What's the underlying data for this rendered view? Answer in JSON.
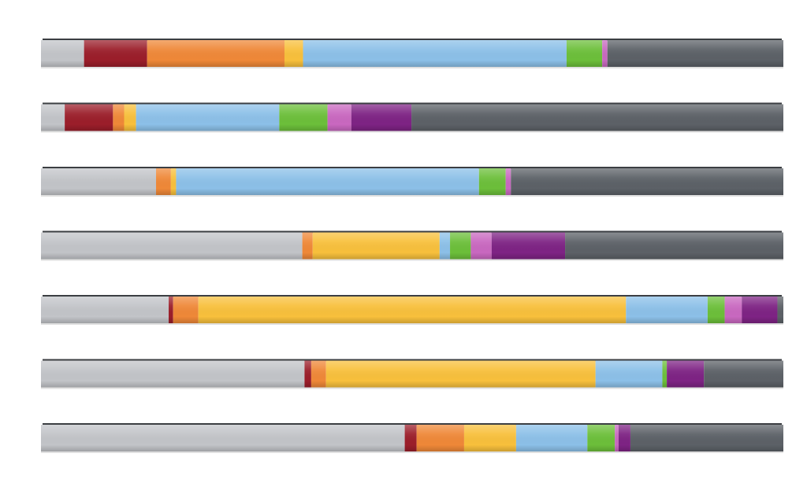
{
  "title": "",
  "chart_data": {
    "type": "bar",
    "orientation": "horizontal",
    "stacked": true,
    "title": "",
    "xlabel": "",
    "ylabel": "",
    "xlim": [
      0,
      1
    ],
    "grid": false,
    "legend": "none",
    "colors": {
      "light_gray": "#c2c4c8",
      "dark_red": "#9b1e2a",
      "orange": "#ef8838",
      "yellow": "#f8c03c",
      "light_blue": "#8cc0e8",
      "green": "#6cbf3a",
      "pink": "#c968c0",
      "purple": "#7e2384",
      "dark_gray": "#5c6167"
    },
    "rows": [
      {
        "segments": [
          {
            "color": "light_gray",
            "value": 0.058
          },
          {
            "color": "dark_red",
            "value": 0.085
          },
          {
            "color": "orange",
            "value": 0.185
          },
          {
            "color": "yellow",
            "value": 0.025
          },
          {
            "color": "light_blue",
            "value": 0.355
          },
          {
            "color": "green",
            "value": 0.048
          },
          {
            "color": "pink",
            "value": 0.007
          },
          {
            "color": "dark_gray",
            "value": 0.237
          }
        ]
      },
      {
        "segments": [
          {
            "color": "light_gray",
            "value": 0.032
          },
          {
            "color": "dark_red",
            "value": 0.065
          },
          {
            "color": "orange",
            "value": 0.015
          },
          {
            "color": "yellow",
            "value": 0.016
          },
          {
            "color": "light_blue",
            "value": 0.193
          },
          {
            "color": "green",
            "value": 0.065
          },
          {
            "color": "pink",
            "value": 0.032
          },
          {
            "color": "purple",
            "value": 0.081
          },
          {
            "color": "dark_gray",
            "value": 0.501
          }
        ]
      },
      {
        "segments": [
          {
            "color": "light_gray",
            "value": 0.155
          },
          {
            "color": "orange",
            "value": 0.02
          },
          {
            "color": "yellow",
            "value": 0.007
          },
          {
            "color": "light_blue",
            "value": 0.408
          },
          {
            "color": "green",
            "value": 0.036
          },
          {
            "color": "pink",
            "value": 0.007
          },
          {
            "color": "dark_gray",
            "value": 0.367
          }
        ]
      },
      {
        "segments": [
          {
            "color": "light_gray",
            "value": 0.352
          },
          {
            "color": "orange",
            "value": 0.014
          },
          {
            "color": "yellow",
            "value": 0.171
          },
          {
            "color": "light_blue",
            "value": 0.014
          },
          {
            "color": "green",
            "value": 0.028
          },
          {
            "color": "pink",
            "value": 0.028
          },
          {
            "color": "purple",
            "value": 0.099
          },
          {
            "color": "dark_gray",
            "value": 0.294
          }
        ]
      },
      {
        "segments": [
          {
            "color": "light_gray",
            "value": 0.172
          },
          {
            "color": "dark_red",
            "value": 0.006
          },
          {
            "color": "orange",
            "value": 0.034
          },
          {
            "color": "yellow",
            "value": 0.576
          },
          {
            "color": "light_blue",
            "value": 0.11
          },
          {
            "color": "green",
            "value": 0.023
          },
          {
            "color": "pink",
            "value": 0.023
          },
          {
            "color": "purple",
            "value": 0.048
          },
          {
            "color": "dark_gray",
            "value": 0.008
          }
        ]
      },
      {
        "segments": [
          {
            "color": "light_gray",
            "value": 0.355
          },
          {
            "color": "dark_red",
            "value": 0.009
          },
          {
            "color": "orange",
            "value": 0.02
          },
          {
            "color": "yellow",
            "value": 0.363
          },
          {
            "color": "light_blue",
            "value": 0.09
          },
          {
            "color": "green",
            "value": 0.006
          },
          {
            "color": "purple",
            "value": 0.05
          },
          {
            "color": "dark_gray",
            "value": 0.107
          }
        ]
      },
      {
        "segments": [
          {
            "color": "light_gray",
            "value": 0.49
          },
          {
            "color": "dark_red",
            "value": 0.016
          },
          {
            "color": "orange",
            "value": 0.064
          },
          {
            "color": "yellow",
            "value": 0.07
          },
          {
            "color": "light_blue",
            "value": 0.096
          },
          {
            "color": "green",
            "value": 0.037
          },
          {
            "color": "pink",
            "value": 0.005
          },
          {
            "color": "purple",
            "value": 0.016
          },
          {
            "color": "dark_gray",
            "value": 0.206
          }
        ]
      }
    ]
  }
}
